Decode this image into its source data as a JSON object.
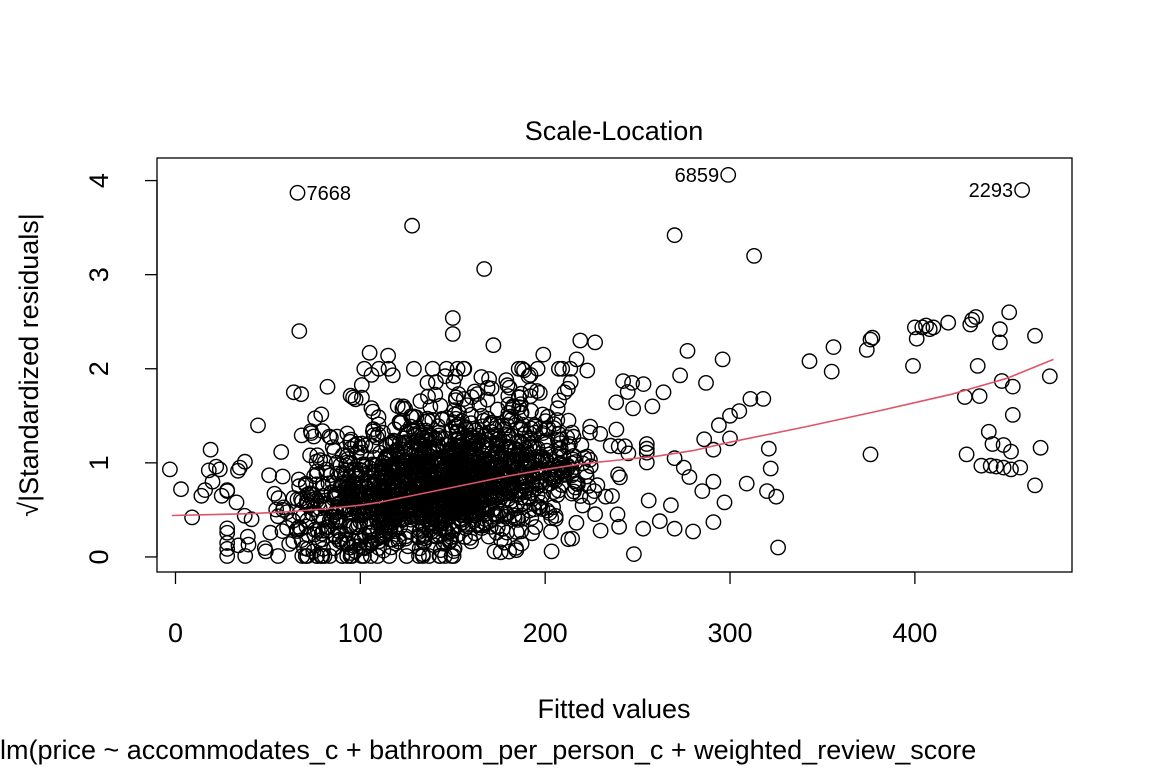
{
  "chart_data": {
    "type": "scatter",
    "title": "Scale-Location",
    "xlabel": "Fitted values",
    "ylabel": "√|Standardized residuals|",
    "sub": "lm(price ~ accommodates_c + bathroom_per_person_c + weighted_review_score",
    "xlim": [
      -10,
      485
    ],
    "ylim": [
      -0.16,
      4.24
    ],
    "x_ticks": [
      0,
      100,
      200,
      300,
      400
    ],
    "y_ticks": [
      0,
      1,
      2,
      3,
      4
    ],
    "grid": false,
    "colors": {
      "points": "#000000",
      "smooth": "#DF536B"
    },
    "smooth_line": {
      "x": [
        -2,
        20,
        40,
        60,
        80,
        100,
        110,
        120,
        140,
        160,
        180,
        200,
        220,
        240,
        260,
        280,
        300,
        340,
        380,
        420,
        450,
        475
      ],
      "y": [
        0.44,
        0.45,
        0.46,
        0.48,
        0.51,
        0.55,
        0.58,
        0.62,
        0.7,
        0.78,
        0.86,
        0.93,
        0.99,
        1.03,
        1.07,
        1.13,
        1.22,
        1.38,
        1.55,
        1.73,
        1.9,
        2.1
      ]
    },
    "labeled_points": [
      {
        "label": "7668",
        "x": 66,
        "y": 3.87,
        "side": "right"
      },
      {
        "label": "6859",
        "x": 299,
        "y": 4.06,
        "side": "left"
      },
      {
        "label": "2293",
        "x": 458,
        "y": 3.9,
        "side": "left"
      }
    ],
    "points": [
      [
        128,
        3.52
      ],
      [
        167,
        3.06
      ],
      [
        270,
        3.42
      ],
      [
        313,
        3.2
      ],
      [
        67,
        2.4
      ],
      [
        150,
        2.54
      ],
      [
        150,
        2.37
      ],
      [
        172,
        2.25
      ],
      [
        105,
        2.17
      ],
      [
        115,
        2.14
      ],
      [
        219,
        2.3
      ],
      [
        227,
        2.28
      ],
      [
        199,
        2.15
      ],
      [
        217,
        2.1
      ],
      [
        64,
        1.75
      ],
      [
        68,
        1.73
      ],
      [
        277,
        2.19
      ],
      [
        296,
        2.1
      ],
      [
        247,
        1.85
      ],
      [
        273,
        1.93
      ],
      [
        258,
        1.6
      ],
      [
        264,
        1.75
      ],
      [
        287,
        1.85
      ],
      [
        305,
        1.55
      ],
      [
        311,
        1.68
      ],
      [
        318,
        1.68
      ],
      [
        300,
        1.5
      ],
      [
        294,
        1.4
      ],
      [
        321,
        1.15
      ],
      [
        322,
        0.94
      ],
      [
        320,
        0.7
      ],
      [
        325,
        0.64
      ],
      [
        309,
        0.78
      ],
      [
        297,
        0.58
      ],
      [
        291,
        0.8
      ],
      [
        326,
        0.1
      ],
      [
        248,
        0.03
      ],
      [
        291,
        0.37
      ],
      [
        270,
        0.3
      ],
      [
        280,
        0.27
      ],
      [
        268,
        0.55
      ],
      [
        286,
        1.25
      ],
      [
        291,
        1.14
      ],
      [
        300,
        1.26
      ],
      [
        270,
        1.05
      ],
      [
        275,
        0.95
      ],
      [
        285,
        0.7
      ],
      [
        278,
        0.85
      ],
      [
        245,
        1.1
      ],
      [
        240,
        0.32
      ],
      [
        230,
        0.28
      ],
      [
        256,
        0.6
      ],
      [
        253,
        0.3
      ],
      [
        262,
        0.38
      ],
      [
        255,
        1.2
      ],
      [
        343,
        2.08
      ],
      [
        356,
        2.23
      ],
      [
        355,
        1.97
      ],
      [
        374,
        2.2
      ],
      [
        376,
        2.31
      ],
      [
        377,
        2.33
      ],
      [
        376,
        1.09
      ],
      [
        399,
        2.03
      ],
      [
        400,
        2.44
      ],
      [
        401,
        2.32
      ],
      [
        404,
        2.44
      ],
      [
        406,
        2.46
      ],
      [
        408,
        2.42
      ],
      [
        410,
        2.44
      ],
      [
        418,
        2.49
      ],
      [
        430,
        2.47
      ],
      [
        431,
        2.52
      ],
      [
        433,
        2.55
      ],
      [
        446,
        2.42
      ],
      [
        451,
        2.6
      ],
      [
        465,
        2.35
      ],
      [
        446,
        2.28
      ],
      [
        434,
        2.03
      ],
      [
        427,
        1.7
      ],
      [
        435,
        1.71
      ],
      [
        453,
        1.81
      ],
      [
        447,
        1.87
      ],
      [
        473,
        1.92
      ],
      [
        453,
        1.51
      ],
      [
        440,
        1.33
      ],
      [
        442,
        1.2
      ],
      [
        448,
        1.19
      ],
      [
        452,
        1.12
      ],
      [
        468,
        1.16
      ],
      [
        428,
        1.09
      ],
      [
        436,
        0.97
      ],
      [
        441,
        0.97
      ],
      [
        444,
        0.96
      ],
      [
        448,
        0.95
      ],
      [
        452,
        0.93
      ],
      [
        457,
        0.95
      ],
      [
        465,
        0.76
      ],
      [
        -3,
        0.93
      ],
      [
        3,
        0.72
      ],
      [
        9,
        0.42
      ],
      [
        14,
        0.65
      ],
      [
        16,
        0.71
      ],
      [
        18,
        0.92
      ],
      [
        19,
        1.14
      ],
      [
        20,
        0.8
      ],
      [
        22,
        0.96
      ],
      [
        24,
        0.93
      ],
      [
        25,
        0.65
      ]
    ]
  }
}
